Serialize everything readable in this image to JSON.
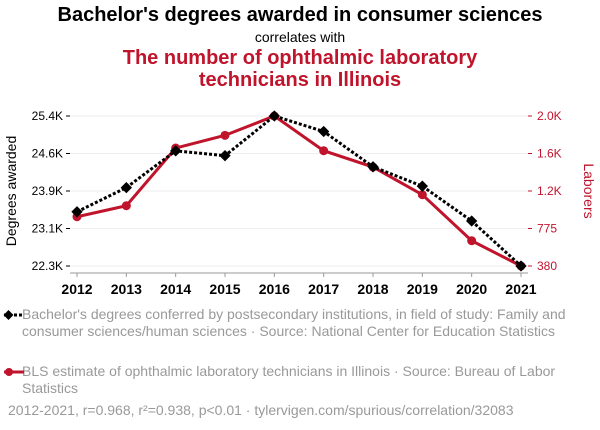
{
  "title": "Bachelor's degrees awarded in consumer sciences",
  "subtitle": "correlates with",
  "title2": "The number of ophthalmic laboratory technicians in Illinois",
  "colors": {
    "series1": "#000000",
    "series2": "#c0142c"
  },
  "legend": [
    "Bachelor's degrees conferred by postsecondary institutions, in field of study: Family and consumer sciences/human sciences · Source: National Center for Education Statistics",
    "BLS estimate of ophthalmic laboratory technicians in Illinois · Source: Bureau of Labor Statistics"
  ],
  "footer": "2012-2021, r=0.968, r²=0.938, p<0.01 · tylervigen.com/spurious/correlation/32083",
  "chart_data": {
    "type": "line",
    "x": [
      "2012",
      "2013",
      "2014",
      "2015",
      "2016",
      "2017",
      "2018",
      "2019",
      "2020",
      "2021"
    ],
    "ylabel": "Degrees awarded",
    "y2label": "Laborers",
    "ylim": [
      22300,
      25400
    ],
    "y2lim": [
      380,
      2000
    ],
    "yticks": [
      "22.3K",
      "23.1K",
      "23.9K",
      "24.6K",
      "25.4K"
    ],
    "y2ticks": [
      "380",
      "775",
      "1.2K",
      "1.6K",
      "2.0K"
    ],
    "series": [
      {
        "name": "Bachelor's degrees",
        "axis": "left",
        "values": [
          23420,
          23920,
          24680,
          24580,
          25400,
          25080,
          24350,
          23950,
          23230,
          22300
        ]
      },
      {
        "name": "Ophthalmic laboratory technicians",
        "axis": "right",
        "values": [
          912,
          1031,
          1654,
          1791,
          2000,
          1625,
          1449,
          1150,
          653,
          380
        ]
      }
    ]
  }
}
